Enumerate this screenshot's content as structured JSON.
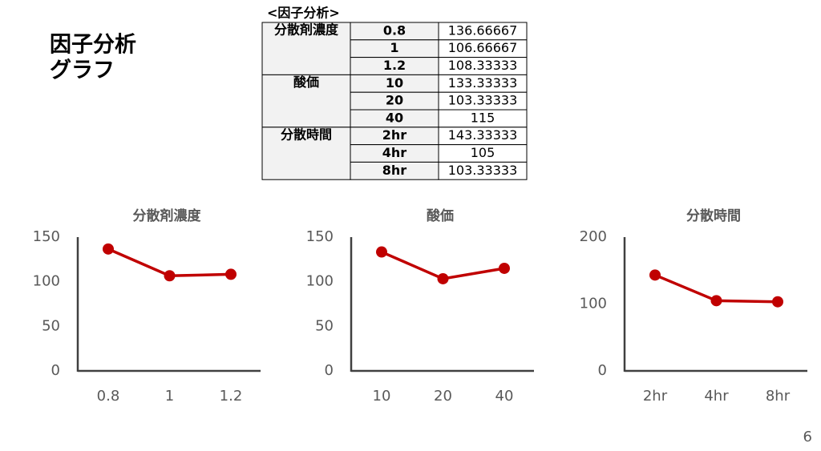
{
  "slide": {
    "title_lines": [
      "因子分析",
      "グラフ"
    ],
    "page_number": "6"
  },
  "table": {
    "title": "<因子分析>",
    "groups": [
      {
        "name": "分散剤濃度",
        "rows": [
          [
            "0.8",
            136.66667
          ],
          [
            "1",
            106.66667
          ],
          [
            "1.2",
            108.33333
          ]
        ]
      },
      {
        "name": "酸価",
        "rows": [
          [
            "10",
            133.33333
          ],
          [
            "20",
            103.33333
          ],
          [
            "40",
            115
          ]
        ]
      },
      {
        "name": "分散時間",
        "rows": [
          [
            "2hr",
            143.33333
          ],
          [
            "4hr",
            105
          ],
          [
            "8hr",
            103.33333
          ]
        ]
      }
    ]
  },
  "chart_data": [
    {
      "type": "line",
      "title": "分散剤濃度",
      "categories": [
        "0.8",
        "1",
        "1.2"
      ],
      "values": [
        136.66667,
        106.66667,
        108.33333
      ],
      "color": "#c00000",
      "ylim": [
        0,
        150
      ],
      "yticks": [
        0,
        50,
        100,
        150
      ],
      "grid": false
    },
    {
      "type": "line",
      "title": "酸価",
      "categories": [
        "10",
        "20",
        "40"
      ],
      "values": [
        133.33333,
        103.33333,
        115
      ],
      "color": "#c00000",
      "ylim": [
        0,
        150
      ],
      "yticks": [
        0,
        50,
        100,
        150
      ],
      "grid": false
    },
    {
      "type": "line",
      "title": "分散時間",
      "categories": [
        "2hr",
        "4hr",
        "8hr"
      ],
      "values": [
        143.33333,
        105,
        103.33333
      ],
      "color": "#c00000",
      "ylim": [
        0,
        200
      ],
      "yticks": [
        0,
        100,
        200
      ],
      "grid": false
    }
  ]
}
